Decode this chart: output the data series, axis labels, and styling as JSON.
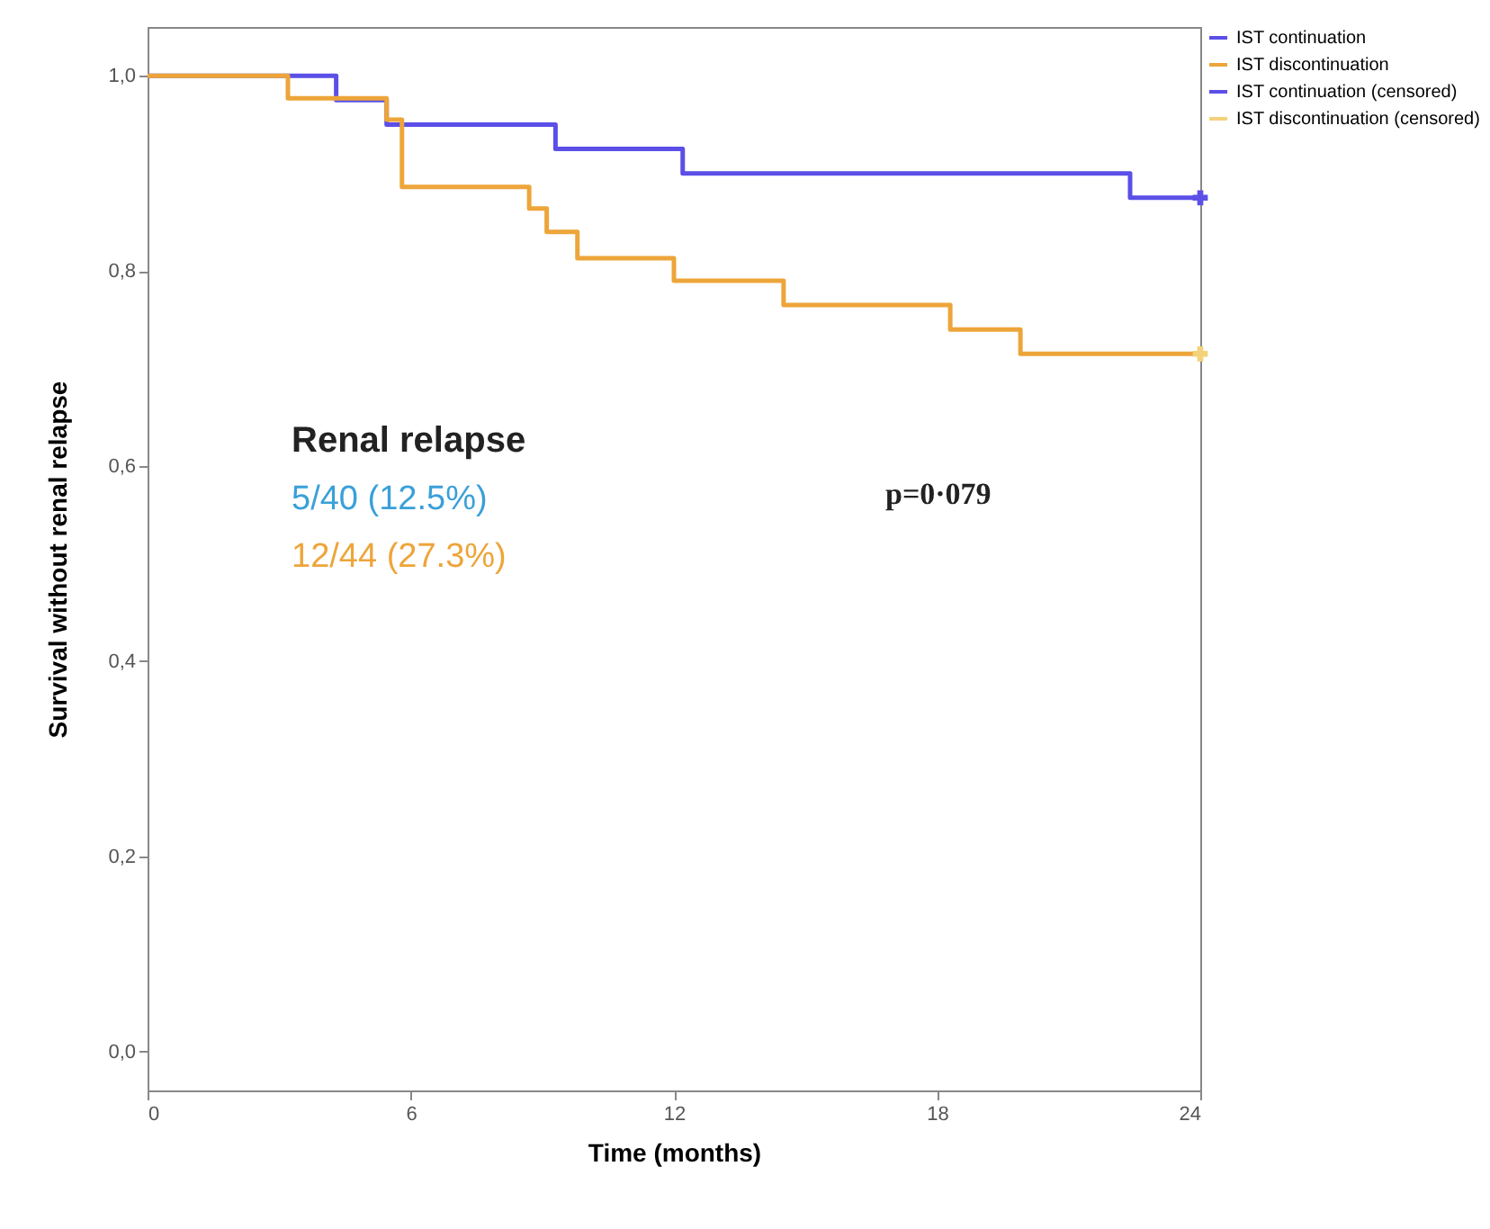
{
  "chart_data": {
    "type": "step",
    "xlabel": "Time (months)",
    "ylabel": "Survival without renal relapse",
    "xlim": [
      0,
      24
    ],
    "xticks": [
      0,
      6,
      12,
      18,
      24
    ],
    "ylim": [
      -0.04,
      1.05
    ],
    "yticks": [
      {
        "value": 0,
        "label": "0,0"
      },
      {
        "value": 0.2,
        "label": "0,2"
      },
      {
        "value": 0.4,
        "label": "0,4"
      },
      {
        "value": 0.6,
        "label": "0,6"
      },
      {
        "value": 0.8,
        "label": "0,8"
      },
      {
        "value": 1,
        "label": "1,0"
      }
    ],
    "legend": "top right",
    "grid": false,
    "annotations": [
      "Renal relapse",
      "5/40 (12.5%)",
      "12/44 (27.3%)",
      "p=0·079"
    ],
    "series": [
      {
        "name": "IST continuation",
        "color": "#5b4fe8",
        "x": [
          0,
          4.3,
          5.45,
          9.3,
          12.2,
          22.4,
          24
        ],
        "values": [
          1,
          0.975,
          0.95,
          0.925,
          0.9,
          0.875,
          0.875
        ]
      },
      {
        "name": "IST discontinuation",
        "color": "#eda53a",
        "x": [
          0,
          3.2,
          5.45,
          5.8,
          8.7,
          9.1,
          9.8,
          12.0,
          14.5,
          18.3,
          19.9,
          24
        ],
        "values": [
          1,
          0.977,
          0.955,
          0.886,
          0.864,
          0.84,
          0.813,
          0.79,
          0.765,
          0.74,
          0.715,
          0.715
        ]
      },
      {
        "name": "IST continuation (censored)",
        "type": "scatter",
        "color": "#5b4fe8",
        "x": [
          24
        ],
        "values": [
          0.875
        ]
      },
      {
        "name": "IST discontinuation (censored)",
        "type": "scatter",
        "color": "#f3d27a",
        "x": [
          24
        ],
        "values": [
          0.715
        ]
      }
    ]
  }
}
